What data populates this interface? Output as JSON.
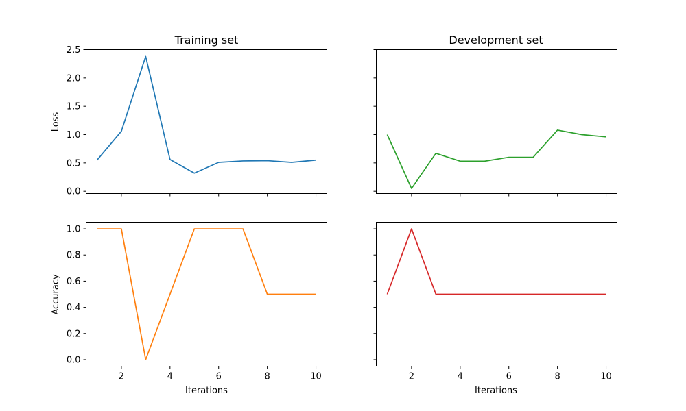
{
  "chart_data": [
    {
      "type": "line",
      "title": "Training set",
      "xlabel": "",
      "ylabel": "Loss",
      "xlim": [
        0.55,
        10.45
      ],
      "ylim": [
        -0.04,
        2.5
      ],
      "xticks": [
        2,
        4,
        6,
        8,
        10
      ],
      "show_xticklabels": false,
      "yticks": [
        0.0,
        0.5,
        1.0,
        1.5,
        2.0,
        2.5
      ],
      "ytick_labels": [
        "0.0",
        "0.5",
        "1.0",
        "1.5",
        "2.0",
        "2.5"
      ],
      "show_yticklabels": true,
      "grid": false,
      "series": [
        {
          "color": "#1f77b4",
          "x": [
            1,
            2,
            3,
            4,
            5,
            6,
            7,
            8,
            9,
            10
          ],
          "y": [
            0.55,
            1.06,
            2.38,
            0.56,
            0.32,
            0.51,
            0.535,
            0.54,
            0.51,
            0.55
          ]
        }
      ]
    },
    {
      "type": "line",
      "title": "Development set",
      "xlabel": "",
      "ylabel": "",
      "xlim": [
        0.55,
        10.45
      ],
      "ylim": [
        -0.04,
        2.5
      ],
      "xticks": [
        2,
        4,
        6,
        8,
        10
      ],
      "show_xticklabels": false,
      "yticks": [
        0.0,
        0.5,
        1.0,
        1.5,
        2.0,
        2.5
      ],
      "show_yticklabels": false,
      "grid": false,
      "series": [
        {
          "color": "#2ca02c",
          "x": [
            1,
            2,
            3,
            4,
            5,
            6,
            7,
            8,
            9,
            10
          ],
          "y": [
            1.0,
            0.05,
            0.67,
            0.53,
            0.53,
            0.6,
            0.6,
            1.08,
            1.0,
            0.96
          ]
        }
      ]
    },
    {
      "type": "line",
      "title": "",
      "xlabel": "Iterations",
      "ylabel": "Accuracy",
      "xlim": [
        0.55,
        10.45
      ],
      "ylim": [
        -0.05,
        1.05
      ],
      "xticks": [
        2,
        4,
        6,
        8,
        10
      ],
      "xtick_labels": [
        "2",
        "4",
        "6",
        "8",
        "10"
      ],
      "show_xticklabels": true,
      "yticks": [
        0.0,
        0.2,
        0.4,
        0.6,
        0.8,
        1.0
      ],
      "ytick_labels": [
        "0.0",
        "0.2",
        "0.4",
        "0.6",
        "0.8",
        "1.0"
      ],
      "show_yticklabels": true,
      "grid": false,
      "series": [
        {
          "color": "#ff7f0e",
          "x": [
            1,
            2,
            3,
            4,
            5,
            6,
            7,
            8,
            9,
            10
          ],
          "y": [
            1.0,
            1.0,
            0.0,
            0.5,
            1.0,
            1.0,
            1.0,
            0.5,
            0.5,
            0.5
          ]
        }
      ]
    },
    {
      "type": "line",
      "title": "",
      "xlabel": "Iterations",
      "ylabel": "",
      "xlim": [
        0.55,
        10.45
      ],
      "ylim": [
        -0.05,
        1.05
      ],
      "xticks": [
        2,
        4,
        6,
        8,
        10
      ],
      "xtick_labels": [
        "2",
        "4",
        "6",
        "8",
        "10"
      ],
      "show_xticklabels": true,
      "yticks": [
        0.0,
        0.2,
        0.4,
        0.6,
        0.8,
        1.0
      ],
      "show_yticklabels": false,
      "grid": false,
      "series": [
        {
          "color": "#d62728",
          "x": [
            1,
            2,
            3,
            4,
            5,
            6,
            7,
            8,
            9,
            10
          ],
          "y": [
            0.5,
            1.0,
            0.5,
            0.5,
            0.5,
            0.5,
            0.5,
            0.5,
            0.5,
            0.5
          ]
        }
      ]
    }
  ]
}
